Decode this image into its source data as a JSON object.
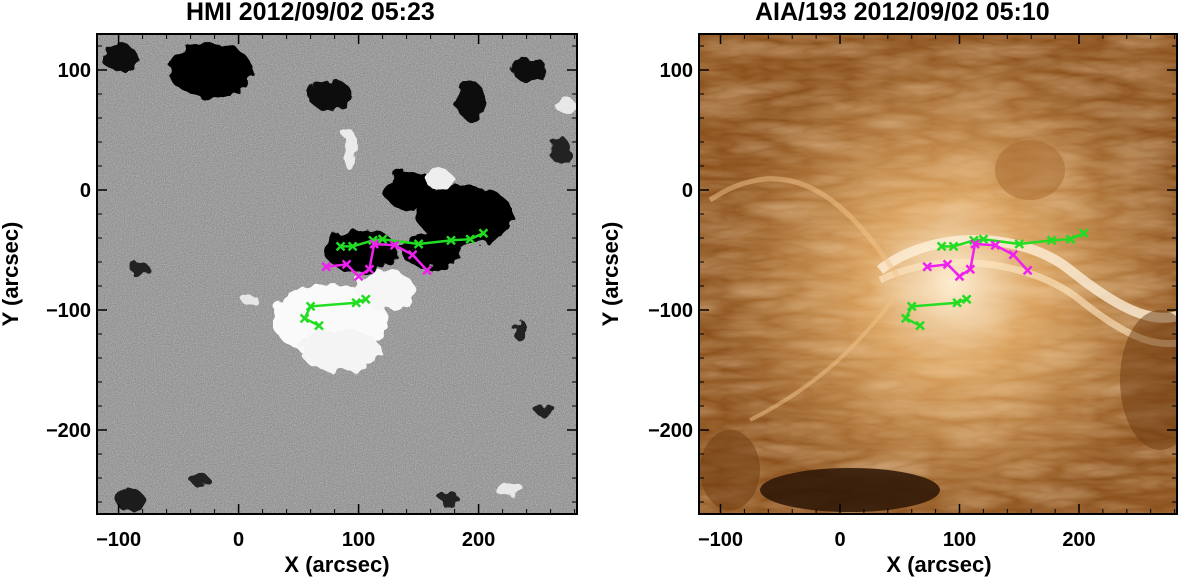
{
  "panels": [
    {
      "title": "HMI 2012/09/02 05:23",
      "xlabel": "X (arcsec)",
      "ylabel": "Y (arcsec)",
      "image_style": "grayscale magnetogram (black = negative polarity, white = positive polarity)",
      "x_ticks": [
        "−100",
        "0",
        "100",
        "200"
      ],
      "y_ticks": [
        "100",
        "0",
        "−100",
        "−200"
      ]
    },
    {
      "title": "AIA/193 2012/09/02 05:10",
      "xlabel": "X (arcsec)",
      "ylabel": "Y (arcsec)",
      "image_style": "EUV 193 Å image in brown/copper color table",
      "x_ticks": [
        "−100",
        "0",
        "100",
        "200"
      ],
      "y_ticks": [
        "100",
        "0",
        "−100",
        "−200"
      ]
    }
  ],
  "axes": {
    "xlim": [
      -118,
      282
    ],
    "ylim": [
      -270,
      130
    ],
    "x_tick_values": [
      -100,
      0,
      100,
      200
    ],
    "y_tick_values": [
      100,
      0,
      -100,
      -200
    ]
  },
  "overlays": {
    "colors": {
      "green": "#22dd22",
      "magenta": "#ee22ee"
    },
    "green_upper": [
      [
        85,
        -47
      ],
      [
        95,
        -47
      ],
      [
        112,
        -42
      ],
      [
        120,
        -41
      ],
      [
        150,
        -45
      ],
      [
        177,
        -42
      ],
      [
        193,
        -41
      ],
      [
        204,
        -36
      ]
    ],
    "green_lower": [
      [
        67,
        -113
      ],
      [
        55,
        -107
      ],
      [
        60,
        -97
      ],
      [
        98,
        -94
      ],
      [
        106,
        -91
      ]
    ],
    "magenta": [
      [
        73,
        -64
      ],
      [
        90,
        -62
      ],
      [
        100,
        -72
      ],
      [
        109,
        -66
      ],
      [
        113,
        -45
      ],
      [
        130,
        -46
      ],
      [
        145,
        -54
      ],
      [
        157,
        -67
      ]
    ]
  }
}
